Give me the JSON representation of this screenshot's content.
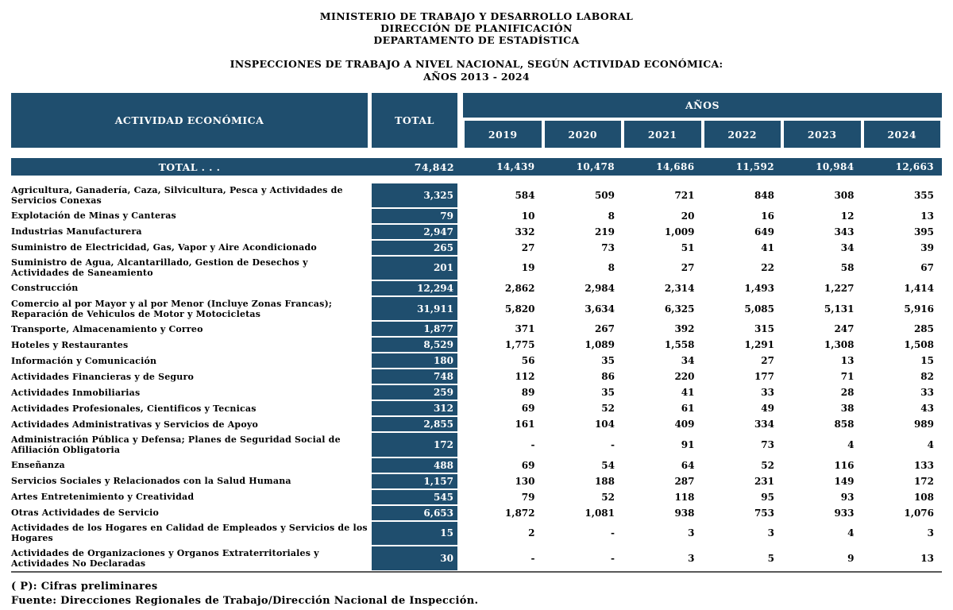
{
  "colors": {
    "header_blue": "#1F4E6E"
  },
  "header": {
    "org_line1": "MINISTERIO DE TRABAJO Y DESARROLLO LABORAL",
    "org_line2": "DIRECCIÓN DE PLANIFICACIÓN",
    "org_line3": "DEPARTAMENTO DE ESTADÍSTICA",
    "title_line1": "INSPECCIONES DE TRABAJO A NIVEL NACIONAL,  SEGÚN ACTIVIDAD ECONÓMICA:",
    "title_line2": "AÑOS 2013 - 2024"
  },
  "table": {
    "col_activity": "ACTIVIDAD ECONÓMICA",
    "col_total": "TOTAL",
    "col_years_group": "AÑOS",
    "years": [
      "2019",
      "2020",
      "2021",
      "2022",
      "2023",
      "2024"
    ],
    "total_row": {
      "label": "TOTAL . . .",
      "total": "74,842",
      "values": [
        "14,439",
        "10,478",
        "14,686",
        "11,592",
        "10,984",
        "12,663"
      ]
    },
    "rows": [
      {
        "label": "Agricultura, Ganadería, Caza, Silvicultura, Pesca y Actividades de Servicios Conexas",
        "total": "3,325",
        "values": [
          "584",
          "509",
          "721",
          "848",
          "308",
          "355"
        ]
      },
      {
        "label": "Explotación de Minas y Canteras",
        "total": "79",
        "values": [
          "10",
          "8",
          "20",
          "16",
          "12",
          "13"
        ]
      },
      {
        "label": "Industrias  Manufacturera",
        "total": "2,947",
        "values": [
          "332",
          "219",
          "1,009",
          "649",
          "343",
          "395"
        ]
      },
      {
        "label": "Suministro de Electricidad, Gas, Vapor y Aire Acondicionado",
        "total": "265",
        "values": [
          "27",
          "73",
          "51",
          "41",
          "34",
          "39"
        ]
      },
      {
        "label": "Suministro de Agua, Alcantarillado, Gestion de Desechos y Actividades de Saneamiento",
        "total": "201",
        "values": [
          "19",
          "8",
          "27",
          "22",
          "58",
          "67"
        ]
      },
      {
        "label": "Construcción",
        "total": "12,294",
        "values": [
          "2,862",
          "2,984",
          "2,314",
          "1,493",
          "1,227",
          "1,414"
        ]
      },
      {
        "label": "Comercio al por Mayor y al por Menor (Incluye Zonas Francas); Reparación de Vehiculos de Motor y Motocicletas",
        "total": "31,911",
        "values": [
          "5,820",
          "3,634",
          "6,325",
          "5,085",
          "5,131",
          "5,916"
        ]
      },
      {
        "label": "Transporte, Almacenamiento y Correo",
        "total": "1,877",
        "values": [
          "371",
          "267",
          "392",
          "315",
          "247",
          "285"
        ]
      },
      {
        "label": "Hoteles y Restaurantes",
        "total": "8,529",
        "values": [
          "1,775",
          "1,089",
          "1,558",
          "1,291",
          "1,308",
          "1,508"
        ]
      },
      {
        "label": "Información y Comunicación",
        "total": "180",
        "values": [
          "56",
          "35",
          "34",
          "27",
          "13",
          "15"
        ]
      },
      {
        "label": "Actividades Financieras y de Seguro",
        "total": "748",
        "values": [
          "112",
          "86",
          "220",
          "177",
          "71",
          "82"
        ]
      },
      {
        "label": "Actividades Inmobiliarias",
        "total": "259",
        "values": [
          "89",
          "35",
          "41",
          "33",
          "28",
          "33"
        ]
      },
      {
        "label": "Actividades Profesionales, Cientificos y Tecnicas",
        "total": "312",
        "values": [
          "69",
          "52",
          "61",
          "49",
          "38",
          "43"
        ]
      },
      {
        "label": "Actividades Administrativas y Servicios de Apoyo",
        "total": "2,855",
        "values": [
          "161",
          "104",
          "409",
          "334",
          "858",
          "989"
        ]
      },
      {
        "label": "Administración Pública y Defensa; Planes de Seguridad Social de Afiliación Obligatoria",
        "total": "172",
        "values": [
          "-",
          "-",
          "91",
          "73",
          "4",
          "4"
        ]
      },
      {
        "label": "Enseñanza",
        "total": "488",
        "values": [
          "69",
          "54",
          "64",
          "52",
          "116",
          "133"
        ]
      },
      {
        "label": "Servicios Sociales y Relacionados con la Salud Humana",
        "total": "1,157",
        "values": [
          "130",
          "188",
          "287",
          "231",
          "149",
          "172"
        ]
      },
      {
        "label": "Artes Entretenimiento y Creatividad",
        "total": "545",
        "values": [
          "79",
          "52",
          "118",
          "95",
          "93",
          "108"
        ]
      },
      {
        "label": "Otras Actividades de Servicio",
        "total": "6,653",
        "values": [
          "1,872",
          "1,081",
          "938",
          "753",
          "933",
          "1,076"
        ]
      },
      {
        "label": "Actividades de los Hogares en Calidad de Empleados y Servicios de los Hogares",
        "total": "15",
        "values": [
          "2",
          "-",
          "3",
          "3",
          "4",
          "3"
        ]
      },
      {
        "label": "Actividades de Organizaciones y Organos Extraterritoriales y Actividades No Declaradas",
        "total": "30",
        "values": [
          "-",
          "-",
          "3",
          "5",
          "9",
          "13"
        ]
      }
    ]
  },
  "footer": {
    "note": "( P): Cifras preliminares",
    "source": "Fuente: Direcciones Regionales de Trabajo/Dirección Nacional de Inspección."
  }
}
